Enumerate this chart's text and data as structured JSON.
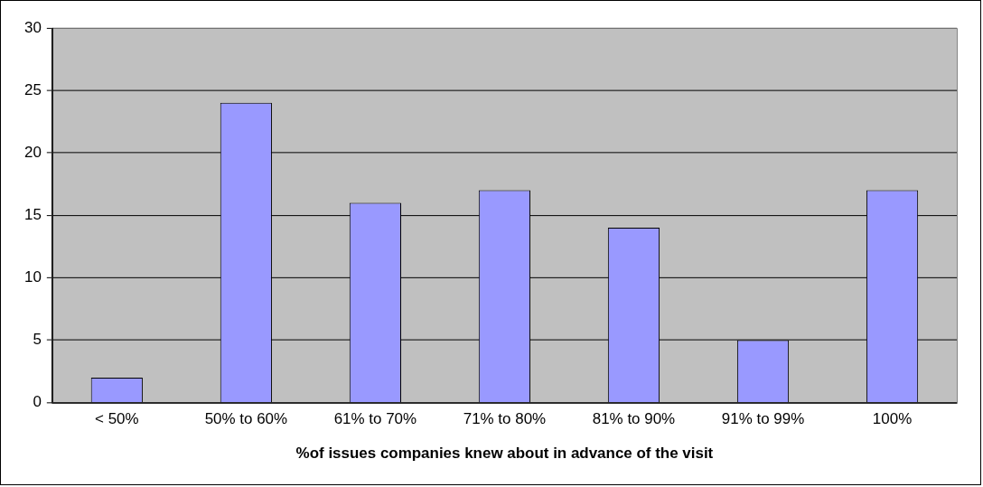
{
  "chart_data": {
    "type": "bar",
    "xlabel": "%of issues companies knew about in advance of the visit",
    "categories": [
      "< 50%",
      "50% to 60%",
      "61% to 70%",
      "71% to 80%",
      "81% to 90%",
      "91% to 99%",
      "100%"
    ],
    "values": [
      2,
      24,
      16,
      17,
      14,
      5,
      17
    ],
    "color": "#9999ff",
    "ylim": [
      0,
      30
    ],
    "yticks": [
      0,
      5,
      10,
      15,
      20,
      25,
      30
    ],
    "grid": "y",
    "legend": false
  }
}
